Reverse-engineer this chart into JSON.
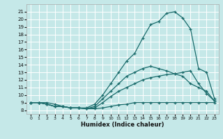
{
  "xlabel": "Humidex (Indice chaleur)",
  "bg_color": "#c5e8e8",
  "grid_color": "#ffffff",
  "line_color": "#1a6b6b",
  "xlim": [
    -0.5,
    23.5
  ],
  "ylim": [
    7.5,
    22
  ],
  "xticks": [
    0,
    1,
    2,
    3,
    4,
    5,
    6,
    7,
    8,
    9,
    10,
    11,
    12,
    13,
    14,
    15,
    16,
    17,
    18,
    19,
    20,
    21,
    22,
    23
  ],
  "yticks": [
    8,
    9,
    10,
    11,
    12,
    13,
    14,
    15,
    16,
    17,
    18,
    19,
    20,
    21
  ],
  "lines": [
    {
      "x": [
        0,
        1,
        2,
        3,
        4,
        5,
        6,
        7,
        8,
        9,
        10,
        11,
        12,
        13,
        14,
        15,
        16,
        17,
        18,
        19,
        20,
        21,
        22,
        23
      ],
      "y": [
        9.0,
        9.0,
        8.8,
        8.5,
        8.5,
        8.3,
        8.3,
        8.2,
        8.2,
        8.3,
        8.5,
        8.7,
        8.8,
        9.0,
        9.0,
        9.0,
        9.0,
        9.0,
        9.0,
        9.0,
        9.0,
        9.0,
        9.0,
        9.0
      ]
    },
    {
      "x": [
        0,
        1,
        2,
        3,
        4,
        5,
        6,
        7,
        8,
        9,
        10,
        11,
        12,
        13,
        14,
        15,
        16,
        17,
        18,
        19,
        20,
        21,
        22,
        23
      ],
      "y": [
        9.0,
        9.0,
        8.8,
        8.5,
        8.5,
        8.3,
        8.3,
        8.2,
        8.3,
        9.0,
        9.8,
        10.5,
        11.0,
        11.5,
        12.0,
        12.3,
        12.5,
        12.7,
        12.8,
        12.5,
        11.5,
        11.0,
        10.5,
        9.2
      ]
    },
    {
      "x": [
        0,
        1,
        2,
        3,
        4,
        5,
        6,
        7,
        8,
        9,
        10,
        11,
        12,
        13,
        14,
        15,
        16,
        17,
        18,
        19,
        20,
        21,
        22,
        23
      ],
      "y": [
        9.0,
        9.0,
        8.8,
        8.5,
        8.5,
        8.3,
        8.3,
        8.2,
        8.5,
        9.5,
        10.5,
        11.5,
        12.5,
        13.0,
        13.5,
        13.8,
        13.5,
        13.2,
        12.8,
        13.0,
        13.2,
        11.5,
        10.2,
        9.2
      ]
    },
    {
      "x": [
        0,
        1,
        2,
        3,
        4,
        5,
        6,
        7,
        8,
        9,
        10,
        11,
        12,
        13,
        14,
        15,
        16,
        17,
        18,
        19,
        20,
        21,
        22,
        23
      ],
      "y": [
        9.0,
        9.0,
        9.0,
        8.8,
        8.5,
        8.3,
        8.3,
        8.3,
        8.8,
        10.0,
        11.5,
        13.0,
        14.5,
        15.5,
        17.5,
        19.3,
        19.7,
        20.8,
        21.0,
        20.2,
        18.7,
        13.5,
        13.0,
        9.5
      ]
    }
  ]
}
